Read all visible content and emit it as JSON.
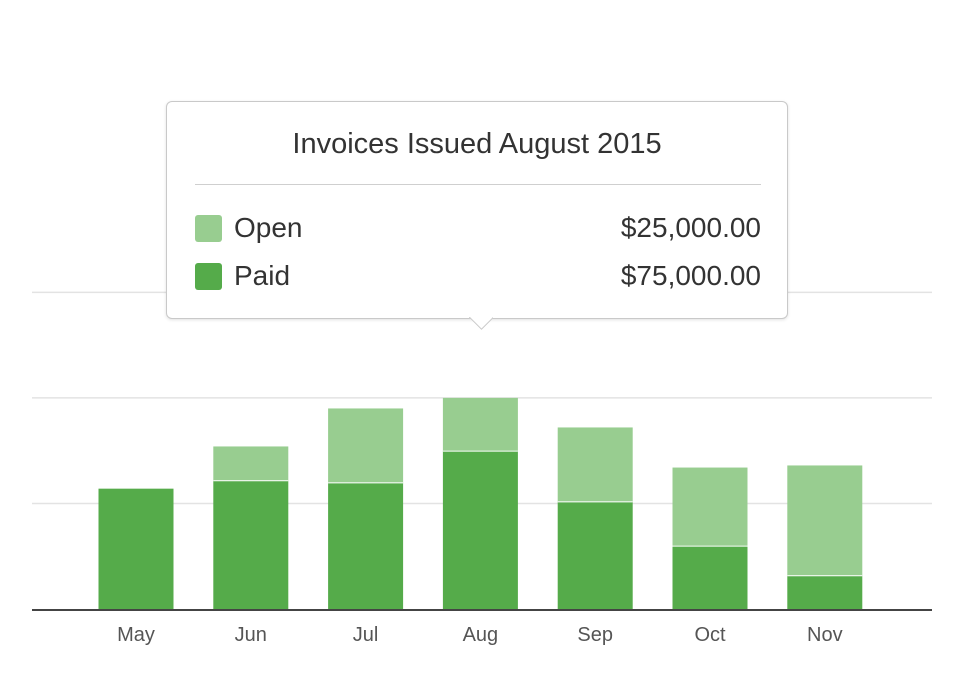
{
  "chart_data": {
    "type": "bar",
    "stacked": true,
    "categories": [
      "May",
      "Jun",
      "Jul",
      "Aug",
      "Sep",
      "Oct",
      "Nov"
    ],
    "series": [
      {
        "name": "Paid",
        "color": "#55ab4a",
        "values": [
          57000,
          61000,
          60000,
          75000,
          51000,
          30000,
          16000
        ]
      },
      {
        "name": "Open",
        "color": "#98cd90",
        "values": [
          0,
          16000,
          35000,
          25000,
          35000,
          37000,
          52000
        ]
      }
    ],
    "ylim": [
      0,
      126000
    ],
    "gridlines": [
      50000,
      100000,
      150000
    ],
    "grid": true
  },
  "tooltip": {
    "title": "Invoices Issued August 2015",
    "rows": [
      {
        "label": "Open",
        "value": "$25,000.00",
        "color": "#98cd90"
      },
      {
        "label": "Paid",
        "value": "$75,000.00",
        "color": "#55ab4a"
      }
    ]
  }
}
